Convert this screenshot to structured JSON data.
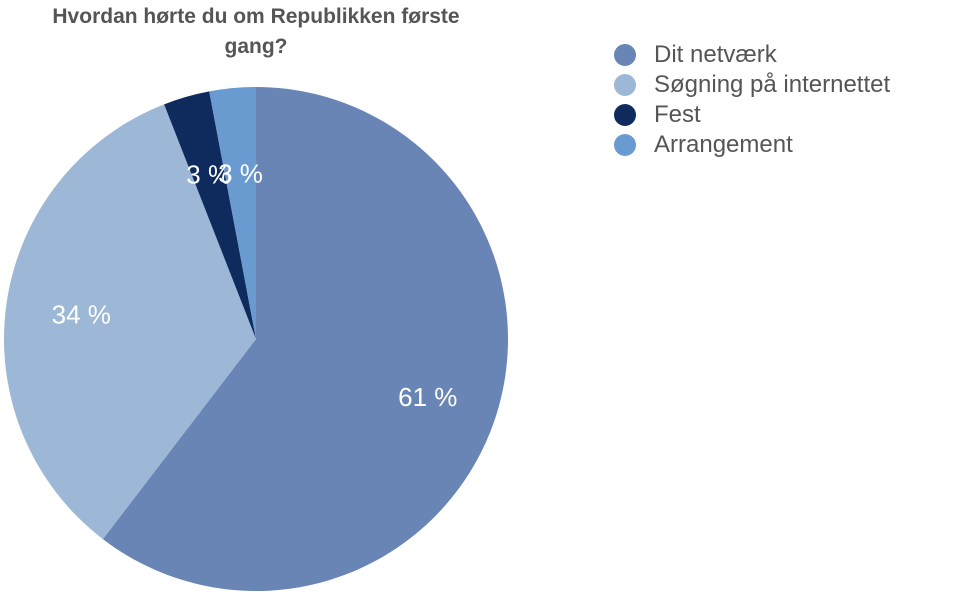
{
  "chart_data": {
    "type": "pie",
    "title": "Hvordan hørte du om Republikken første\ngang?",
    "categories": [
      "Dit netværk",
      "Søgning på internettet",
      "Fest",
      "Arrangement"
    ],
    "values": [
      61,
      34,
      3,
      3
    ],
    "data_labels": [
      "61 %",
      "34 %",
      "3 %",
      "3 %"
    ],
    "colors": [
      "#6885b5",
      "#9db7d6",
      "#0f2b5e",
      "#6a9bd0"
    ],
    "legend_position": "right",
    "start_angle": "top, clockwise"
  }
}
